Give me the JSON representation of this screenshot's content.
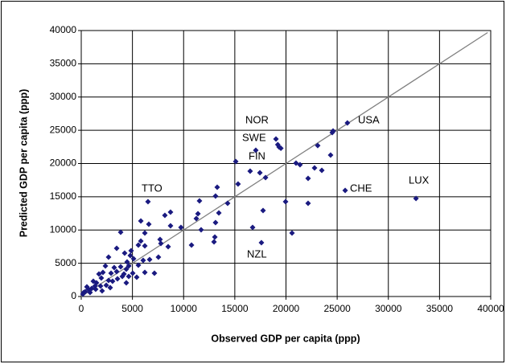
{
  "chart_data": {
    "type": "scatter",
    "xlabel": "Observed GDP per capita (ppp)",
    "ylabel": "Predicted GDP per capita (ppp)",
    "color": "#1a1a80",
    "grid": true,
    "xlim": [
      0,
      40000
    ],
    "ylim": [
      0,
      40000
    ],
    "xticks": [
      0,
      5000,
      10000,
      15000,
      20000,
      25000,
      30000,
      35000,
      40000
    ],
    "yticks": [
      0,
      5000,
      10000,
      15000,
      20000,
      25000,
      30000,
      35000,
      40000
    ],
    "x": [
      26000,
      32700,
      25780,
      17600,
      19020,
      19200,
      19330,
      19500,
      6520,
      24520,
      24600,
      24360,
      23100,
      23500,
      22790,
      22160,
      22160,
      20980,
      21370,
      19960,
      20590,
      17050,
      16500,
      17450,
      18000,
      17760,
      16740,
      15090,
      15320,
      13280,
      13120,
      13440,
      13120,
      13050,
      12970,
      14300,
      11550,
      11400,
      11710,
      11240,
      10770,
      9740,
      8720,
      8170,
      8720,
      8490,
      7780,
      7540,
      7700,
      6600,
      6210,
      5580,
      6210,
      6050,
      6680,
      7150,
      6210,
      5580,
      5110,
      4870,
      3850,
      3460,
      4240,
      4480,
      4640,
      3850,
      3220,
      2910,
      3460,
      4010,
      4640,
      5030,
      5420,
      2670,
      1960,
      1490,
      2360,
      2440,
      1890,
      1340,
      1020,
      710,
      390,
      240,
      550,
      1180,
      1730,
      3060,
      3540,
      4170,
      2120,
      860,
      1410,
      2040,
      2830,
      160,
      4400,
      2670,
      4790,
      5820,
      5820,
      4400
    ],
    "values": [
      26100,
      14740,
      15950,
      8100,
      23690,
      22840,
      22480,
      22300,
      14260,
      24650,
      24900,
      21270,
      22700,
      18970,
      19330,
      17760,
      14020,
      20060,
      19820,
      14260,
      9550,
      21990,
      18850,
      18610,
      17880,
      12930,
      10390,
      20300,
      16920,
      16430,
      15100,
      12570,
      11120,
      8940,
      8220,
      14020,
      14380,
      12450,
      10030,
      11720,
      7730,
      10390,
      12690,
      12210,
      10630,
      7490,
      7980,
      5920,
      8580,
      10880,
      9550,
      7730,
      7610,
      5440,
      5560,
      3500,
      3630,
      4710,
      5680,
      6890,
      9670,
      7250,
      6530,
      5200,
      4590,
      4470,
      4350,
      3500,
      3750,
      3020,
      3020,
      3500,
      2900,
      2420,
      2780,
      2050,
      4590,
      1690,
      1570,
      1570,
      1210,
      1090,
      730,
      600,
      1450,
      2300,
      3380,
      2300,
      2660,
      3380,
      3630,
      600,
      1090,
      850,
      1330,
      360,
      4110,
      5920,
      6160,
      11360,
      8340,
      2050
    ],
    "reference_line": {
      "x": [
        0,
        39700
      ],
      "values": [
        0,
        39700
      ]
    },
    "annotations": [
      "USA",
      "LUX",
      "CHE",
      "NZL",
      "NOR",
      "SWE",
      "FIN",
      "TTO"
    ]
  }
}
